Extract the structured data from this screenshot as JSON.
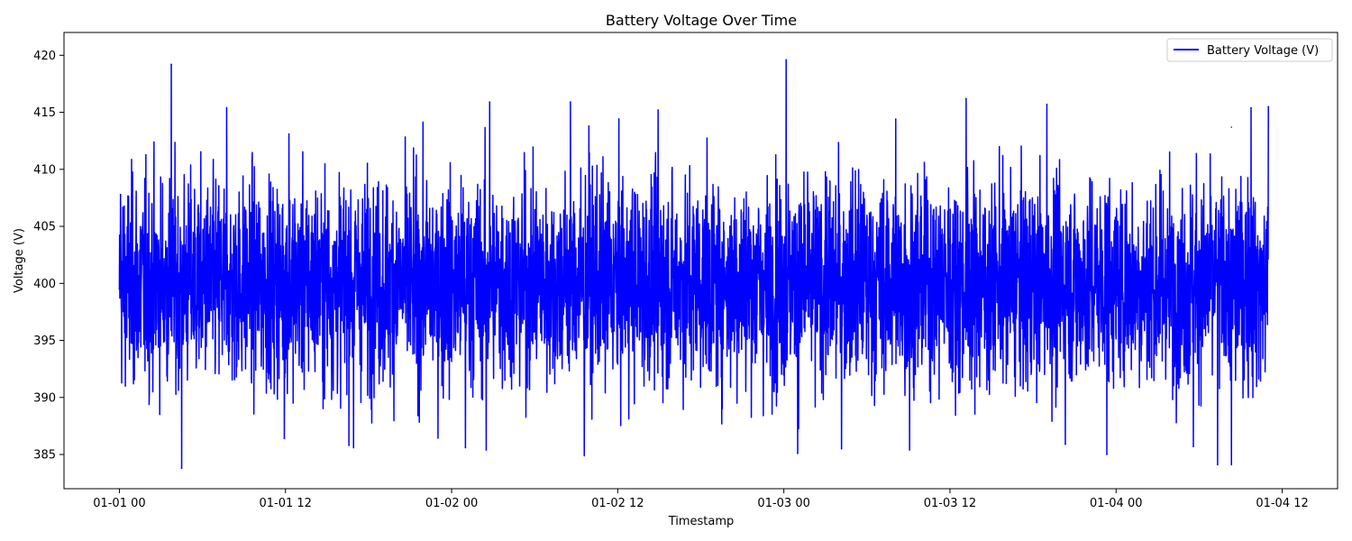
{
  "chart_data": {
    "type": "line",
    "title": "Battery Voltage Over Time",
    "xlabel": "Timestamp",
    "ylabel": "Voltage (V)",
    "x_range": [
      "2024-01-01T00:00",
      "2024-01-04T11:00"
    ],
    "xlim": [
      "2023-12-31T20:00",
      "2024-01-04T16:00"
    ],
    "ylim": [
      382,
      422
    ],
    "x_ticks": [
      "01-01 00",
      "01-01 12",
      "01-02 00",
      "01-02 12",
      "01-03 00",
      "01-03 12",
      "01-04 00",
      "01-04 12"
    ],
    "x_tick_values": [
      "2024-01-01T00:00",
      "2024-01-01T12:00",
      "2024-01-02T00:00",
      "2024-01-02T12:00",
      "2024-01-03T00:00",
      "2024-01-03T12:00",
      "2024-01-04T00:00",
      "2024-01-04T12:00"
    ],
    "y_ticks": [
      385,
      390,
      395,
      400,
      405,
      410,
      415,
      420
    ],
    "grid": false,
    "legend": {
      "position": "top-right",
      "entries": [
        "Battery Voltage (V)"
      ]
    },
    "series": [
      {
        "name": "Battery Voltage (V)",
        "color": "#0000ff",
        "sample_interval_minutes": 1,
        "mean": 400,
        "std_dev": 4.5,
        "min": 383.8,
        "max": 419.6,
        "notable_points": [
          {
            "x": "2024-01-01T00:00",
            "y": 399.5
          },
          {
            "x": "2024-01-01T00:05",
            "y": 407.8
          },
          {
            "x": "2024-01-01T03:45",
            "y": 419.2
          },
          {
            "x": "2024-01-01T04:30",
            "y": 383.8
          },
          {
            "x": "2024-01-01T07:45",
            "y": 415.4
          },
          {
            "x": "2024-01-01T11:55",
            "y": 386.4
          },
          {
            "x": "2024-01-01T12:15",
            "y": 413.1
          },
          {
            "x": "2024-01-01T16:55",
            "y": 385.6
          },
          {
            "x": "2024-01-02T01:00",
            "y": 385.6
          },
          {
            "x": "2024-01-02T02:30",
            "y": 385.4
          },
          {
            "x": "2024-01-02T02:45",
            "y": 415.9
          },
          {
            "x": "2024-01-02T08:35",
            "y": 415.9
          },
          {
            "x": "2024-01-02T09:35",
            "y": 384.9
          },
          {
            "x": "2024-01-02T09:55",
            "y": 413.8
          },
          {
            "x": "2024-01-02T14:55",
            "y": 415.2
          },
          {
            "x": "2024-01-03T00:10",
            "y": 419.6
          },
          {
            "x": "2024-01-03T01:00",
            "y": 385.1
          },
          {
            "x": "2024-01-03T04:10",
            "y": 385.5
          },
          {
            "x": "2024-01-03T08:05",
            "y": 414.4
          },
          {
            "x": "2024-01-03T09:05",
            "y": 385.4
          },
          {
            "x": "2024-01-03T13:10",
            "y": 416.2
          },
          {
            "x": "2024-01-03T19:00",
            "y": 415.7
          },
          {
            "x": "2024-01-03T20:20",
            "y": 385.9
          },
          {
            "x": "2024-01-03T23:20",
            "y": 385.0
          },
          {
            "x": "2024-01-04T05:35",
            "y": 385.7
          },
          {
            "x": "2024-01-04T07:20",
            "y": 384.1
          },
          {
            "x": "2024-01-04T08:20",
            "y": 413.7
          },
          {
            "x": "2024-01-04T08:20",
            "y": 384.1
          },
          {
            "x": "2024-01-04T09:45",
            "y": 415.4
          },
          {
            "x": "2024-01-04T11:00",
            "y": 415.5
          }
        ]
      }
    ]
  }
}
